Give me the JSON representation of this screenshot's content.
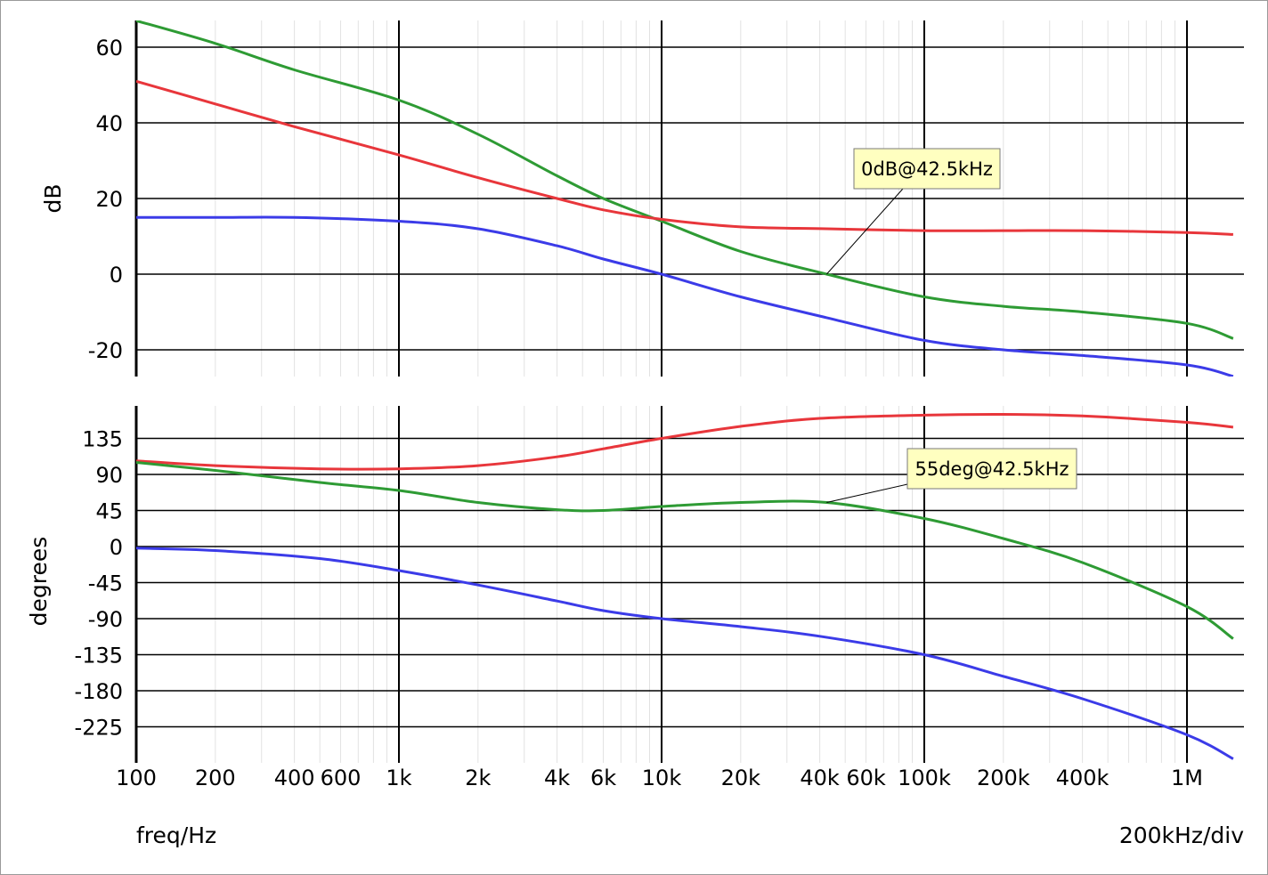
{
  "chart_data": [
    {
      "type": "line",
      "panel": "magnitude",
      "ylabel": "dB",
      "xscale": "log",
      "xlim": [
        100,
        1500000
      ],
      "ylim": [
        -27,
        67
      ],
      "yticks": [
        60,
        40,
        20,
        0,
        -20
      ],
      "grid": true,
      "series": [
        {
          "color": "#2e9b34",
          "x": [
            100,
            200,
            400,
            1000,
            2000,
            4000,
            6000,
            10000,
            20000,
            42500,
            100000,
            200000,
            400000,
            1000000,
            1500000
          ],
          "values": [
            67,
            61,
            54,
            46,
            37,
            26,
            20,
            14,
            6,
            0,
            -6,
            -8.5,
            -10,
            -13,
            -17
          ]
        },
        {
          "color": "#e8363b",
          "x": [
            100,
            200,
            400,
            1000,
            2000,
            4000,
            6000,
            10000,
            20000,
            42500,
            100000,
            200000,
            400000,
            1000000,
            1500000
          ],
          "values": [
            51,
            45,
            39,
            31.5,
            25.5,
            20,
            17,
            14.5,
            12.5,
            12,
            11.5,
            11.5,
            11.5,
            11,
            10.5
          ]
        },
        {
          "color": "#3b3be8",
          "x": [
            100,
            200,
            400,
            1000,
            2000,
            4000,
            6000,
            10000,
            20000,
            42500,
            100000,
            200000,
            400000,
            1000000,
            1500000
          ],
          "values": [
            15,
            15,
            15,
            14,
            12,
            7.5,
            4,
            0,
            -6,
            -11.5,
            -17.5,
            -20,
            -21.5,
            -24,
            -27
          ]
        }
      ],
      "annotations": [
        {
          "text": "0dB@42.5kHz",
          "x": 42500,
          "y": 0
        }
      ]
    },
    {
      "type": "line",
      "panel": "phase",
      "ylabel": "degrees",
      "xscale": "log",
      "xlim": [
        100,
        1500000
      ],
      "ylim": [
        -270,
        175
      ],
      "yticks": [
        135,
        90,
        45,
        0,
        -45,
        -90,
        -135,
        -180,
        -225
      ],
      "grid": true,
      "series": [
        {
          "color": "#e8363b",
          "x": [
            100,
            200,
            500,
            1000,
            2000,
            4000,
            6000,
            10000,
            20000,
            40000,
            100000,
            200000,
            400000,
            1000000,
            1500000
          ],
          "values": [
            107,
            101,
            97,
            97,
            101,
            112,
            122,
            135,
            150,
            160,
            164,
            165,
            163,
            155,
            149
          ]
        },
        {
          "color": "#2e9b34",
          "x": [
            100,
            200,
            500,
            1000,
            2000,
            4000,
            6000,
            10000,
            20000,
            42500,
            100000,
            200000,
            400000,
            1000000,
            1500000
          ],
          "values": [
            105,
            95,
            80,
            70,
            55,
            46,
            45,
            50,
            55,
            55,
            35,
            10,
            -20,
            -75,
            -115
          ]
        },
        {
          "color": "#3b3be8",
          "x": [
            100,
            200,
            500,
            1000,
            2000,
            4000,
            6000,
            10000,
            20000,
            40000,
            100000,
            200000,
            400000,
            1000000,
            1500000
          ],
          "values": [
            -2,
            -5,
            -15,
            -30,
            -48,
            -68,
            -80,
            -90,
            -100,
            -112,
            -135,
            -162,
            -190,
            -235,
            -265
          ]
        }
      ],
      "annotations": [
        {
          "text": "55deg@42.5kHz",
          "x": 42500,
          "y": 55
        }
      ]
    }
  ],
  "xaxis": {
    "tick_values": [
      100,
      200,
      400,
      600,
      1000,
      2000,
      4000,
      6000,
      10000,
      20000,
      40000,
      60000,
      100000,
      200000,
      400000,
      1000000
    ],
    "tick_labels": [
      "100",
      "200",
      "400",
      "600",
      "1k",
      "2k",
      "4k",
      "6k",
      "10k",
      "20k",
      "40k",
      "60k",
      "100k",
      "200k",
      "400k",
      "1M"
    ],
    "label": "freq/Hz",
    "scale_note": "200kHz/div"
  },
  "colors": {
    "grid_major": "#000000",
    "grid_minor": "#e2e2e2",
    "annotation_bg": "#ffffc0"
  }
}
